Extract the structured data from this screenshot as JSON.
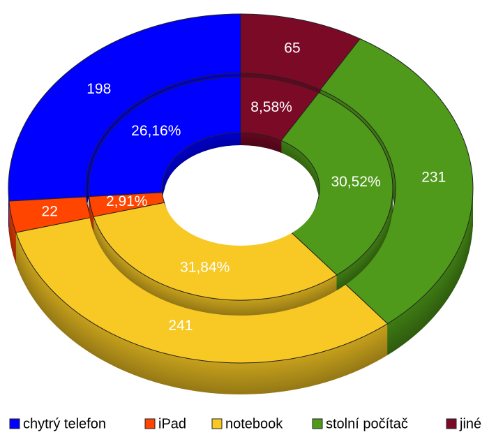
{
  "chart_data": {
    "type": "donut",
    "categories": [
      "chytrý telefon",
      "iPad",
      "notebook",
      "stolní počítač",
      "jiné"
    ],
    "colors": [
      "#0000ff",
      "#ff4500",
      "#f8c924",
      "#4f9a1a",
      "#7b0a26"
    ],
    "series": [
      {
        "values": [
          198,
          22,
          241,
          231,
          65
        ]
      },
      {
        "values": [
          26.16,
          2.91,
          31.84,
          30.52,
          8.58
        ],
        "value_labels": [
          "26,16%",
          "2,91%",
          "31,84%",
          "30,52%",
          "8,58%"
        ]
      }
    ],
    "legend": "bottom"
  }
}
